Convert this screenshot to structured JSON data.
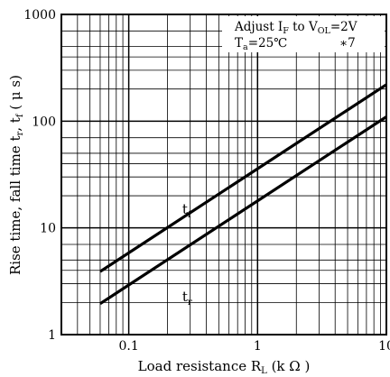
{
  "chart_data": {
    "type": "line",
    "scale": {
      "x": "log",
      "y": "log"
    },
    "xlim": [
      0.03,
      10
    ],
    "ylim": [
      1,
      1000
    ],
    "grid": true,
    "x_ticks": [
      "0.1",
      "1",
      "10"
    ],
    "y_ticks": [
      "1",
      "10",
      "100",
      "1000"
    ],
    "xlabel": {
      "main": "Load resistance R",
      "sub": "L",
      "unit": " (k Ω )"
    },
    "ylabel": {
      "text": "Rise time, fall time t",
      "sub1": "r",
      "mid": ", t",
      "sub2": "f",
      "unit": " ( μ s)"
    },
    "series": [
      {
        "name": "t_f",
        "label": "t",
        "label_sub": "f",
        "x": [
          0.06,
          10
        ],
        "y": [
          3.9,
          220
        ]
      },
      {
        "name": "t_r",
        "label": "t",
        "label_sub": "r",
        "x": [
          0.06,
          10
        ],
        "y": [
          1.95,
          110
        ]
      }
    ],
    "annotations": {
      "line1": {
        "pre": "Adjust I",
        "sub1": "F",
        "mid": " to V",
        "sub2": "OL",
        "post": "=2V"
      },
      "line2": {
        "pre": "T",
        "sub1": "a",
        "post": "=25℃"
      },
      "note_ref": "∗7"
    }
  }
}
